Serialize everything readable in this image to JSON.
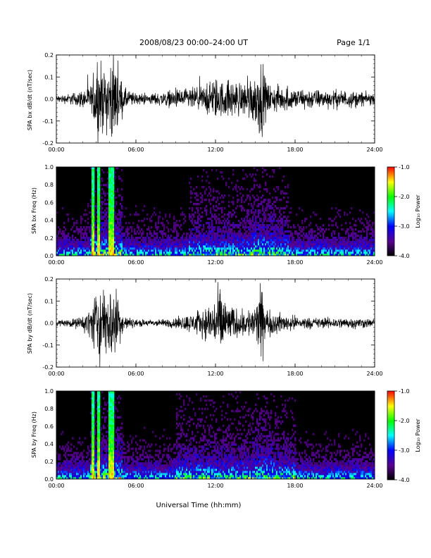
{
  "header": {
    "title": "2008/08/23  00:00–24:00 UT",
    "page": "Page 1/1"
  },
  "x_axis": {
    "label": "Universal Time (hh:mm)",
    "range_hours": [
      0,
      24
    ],
    "ticks": [
      "00:00",
      "06:00",
      "12:00",
      "18:00",
      "24:00"
    ]
  },
  "colorbar": {
    "label": "Log₁₀ Power",
    "ticks": [
      "-1.0",
      "-2.0",
      "-3.0",
      "-4.0"
    ],
    "range": [
      -4.0,
      -1.0
    ],
    "colormap": [
      "#000000",
      "#5a0090",
      "#0000ff",
      "#00ffff",
      "#00ff00",
      "#ffff00",
      "#ff0000"
    ]
  },
  "chart_data": [
    {
      "type": "line",
      "id": "bx-dbdt",
      "ylabel": "SPA bx dB/dt (nT/sec)",
      "ylim": [
        -0.2,
        0.2
      ],
      "yticks": [
        "0.2",
        "0.1",
        "0.0",
        "-0.1",
        "-0.2"
      ],
      "xlim": [
        0,
        24
      ],
      "x": [
        0,
        1,
        2,
        2.7,
        3.0,
        3.3,
        3.6,
        3.9,
        4.2,
        4.5,
        4.8,
        5.2,
        6,
        7,
        8,
        9,
        10,
        11,
        12,
        12.5,
        13,
        14,
        15,
        15.4,
        16,
        17,
        18,
        19,
        20,
        21,
        22,
        23,
        24
      ],
      "envelope": [
        0.02,
        0.03,
        0.05,
        0.08,
        0.21,
        0.21,
        0.15,
        0.21,
        0.21,
        0.21,
        0.12,
        0.06,
        0.03,
        0.03,
        0.04,
        0.05,
        0.06,
        0.07,
        0.12,
        0.1,
        0.11,
        0.09,
        0.15,
        0.21,
        0.08,
        0.07,
        0.06,
        0.06,
        0.05,
        0.05,
        0.05,
        0.04,
        0.03
      ]
    },
    {
      "type": "heatmap",
      "id": "bx-freq",
      "ylabel": "SPA bx Freq (Hz)",
      "ylim": [
        0.0,
        1.0
      ],
      "yticks": [
        "1.0",
        "0.8",
        "0.6",
        "0.4",
        "0.2",
        "0.0"
      ],
      "xlim": [
        0,
        24
      ],
      "value_unit": "Log10 Power",
      "value_range": [
        -4.0,
        -1.0
      ],
      "bright_columns_hours": [
        2.8,
        3.2,
        4.0,
        4.2
      ],
      "activity_hours": [
        [
          2.6,
          5.0
        ],
        [
          10.0,
          17.5
        ]
      ]
    },
    {
      "type": "line",
      "id": "by-dbdt",
      "ylabel": "SPA by dB/dt (nT/sec)",
      "ylim": [
        -0.2,
        0.2
      ],
      "yticks": [
        "0.2",
        "0.1",
        "0.0",
        "-0.1",
        "-0.2"
      ],
      "xlim": [
        0,
        24
      ],
      "x": [
        0,
        1,
        2,
        2.7,
        3.0,
        3.3,
        3.6,
        3.9,
        4.2,
        4.5,
        4.8,
        5.2,
        6,
        7,
        8,
        9,
        10,
        11,
        12,
        12.5,
        13,
        14,
        15,
        15.4,
        16,
        17,
        18,
        19,
        20,
        21,
        22,
        23,
        24
      ],
      "envelope": [
        0.02,
        0.02,
        0.04,
        0.1,
        0.21,
        0.21,
        0.18,
        0.21,
        0.21,
        0.21,
        0.1,
        0.04,
        0.02,
        0.02,
        0.02,
        0.03,
        0.05,
        0.07,
        0.15,
        0.21,
        0.1,
        0.07,
        0.1,
        0.21,
        0.07,
        0.05,
        0.04,
        0.03,
        0.03,
        0.03,
        0.03,
        0.03,
        0.02
      ]
    },
    {
      "type": "heatmap",
      "id": "by-freq",
      "ylabel": "SPA by Freq (Hz)",
      "ylim": [
        0.0,
        1.0
      ],
      "yticks": [
        "1.0",
        "0.8",
        "0.6",
        "0.4",
        "0.2",
        "0.0"
      ],
      "xlim": [
        0,
        24
      ],
      "value_unit": "Log10 Power",
      "value_range": [
        -4.0,
        -1.0
      ],
      "bright_columns_hours": [
        2.8,
        3.2,
        4.0,
        4.2
      ],
      "activity_hours": [
        [
          2.6,
          5.0
        ],
        [
          9.0,
          18.0
        ]
      ]
    }
  ]
}
